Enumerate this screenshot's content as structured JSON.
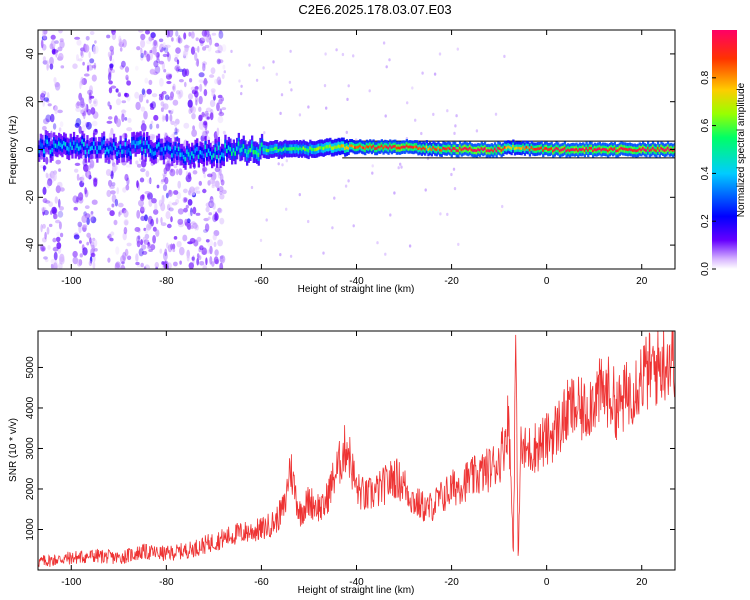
{
  "title": "C2E6.2025.178.03.07.E03",
  "chart_data": [
    {
      "type": "heatmap",
      "xlabel": "Height of straight line (km)",
      "ylabel": "Frequency (Hz)",
      "xlim": [
        -107,
        27
      ],
      "ylim": [
        -50,
        50
      ],
      "xticks": [
        -100,
        -80,
        -60,
        -40,
        -20,
        0,
        20
      ],
      "yticks": [
        -40,
        -20,
        0,
        20,
        40
      ],
      "colorbar": {
        "label": "Normalized spectral amplitude",
        "range": [
          0,
          1
        ],
        "ticks": [
          0.0,
          0.2,
          0.4,
          0.6,
          0.8
        ],
        "tick_labels": [
          "0.0",
          "0.2",
          "0.4",
          "0.6",
          "0.8"
        ],
        "colors": [
          "#ffffff",
          "#d9b8ff",
          "#6600ff",
          "#0000ff",
          "#00ccff",
          "#00ff66",
          "#99ff00",
          "#ffcc00",
          "#ff3300",
          "#ff0066"
        ]
      },
      "ridge": {
        "x": [
          -107,
          -100,
          -95,
          -90,
          -85,
          -80,
          -75,
          -70,
          -65,
          -60,
          -55,
          -50,
          -45,
          -40,
          -35,
          -30,
          -25,
          -20,
          -15,
          -10,
          -8,
          -5,
          0,
          5,
          10,
          15,
          20,
          27
        ],
        "y": [
          1,
          2,
          1,
          0,
          1,
          -1,
          -2,
          -1,
          0,
          0,
          0,
          0,
          1,
          1,
          1,
          1,
          0.5,
          0,
          0,
          0,
          1,
          0.5,
          0,
          0,
          0,
          0,
          0,
          0
        ],
        "amplitude": [
          0.35,
          0.4,
          0.35,
          0.35,
          0.4,
          0.35,
          0.4,
          0.4,
          0.5,
          0.55,
          0.55,
          0.6,
          0.65,
          0.85,
          0.9,
          0.95,
          0.8,
          0.95,
          0.97,
          0.97,
          0.75,
          0.8,
          0.95,
          0.97,
          0.97,
          0.97,
          0.95,
          0.97
        ]
      }
    },
    {
      "type": "line",
      "xlabel": "Height of straight line (km)",
      "ylabel": "SNR (10 * v/v)",
      "xlim": [
        -107,
        27
      ],
      "ylim": [
        0,
        5900
      ],
      "xticks": [
        -100,
        -80,
        -60,
        -40,
        -20,
        0,
        20
      ],
      "yticks": [
        1000,
        2000,
        3000,
        4000,
        5000
      ],
      "color": "#ee3333",
      "x": [
        -107,
        -100,
        -95,
        -90,
        -85,
        -80,
        -75,
        -70,
        -65,
        -60,
        -57,
        -55,
        -54,
        -52,
        -50,
        -47,
        -45,
        -43,
        -42,
        -40,
        -38,
        -35,
        -32,
        -30,
        -28,
        -25,
        -22,
        -20,
        -17,
        -15,
        -12,
        -10,
        -9,
        -8,
        -7,
        -6.5,
        -6,
        -5.5,
        -5,
        -3,
        0,
        3,
        5,
        8,
        10,
        13,
        15,
        18,
        20,
        23,
        25,
        27
      ],
      "y": [
        200,
        300,
        350,
        300,
        450,
        400,
        500,
        700,
        900,
        1000,
        1200,
        1600,
        2600,
        1400,
        1700,
        1500,
        2200,
        2800,
        3100,
        2000,
        1800,
        2000,
        2300,
        2100,
        1700,
        1500,
        1800,
        2000,
        2200,
        2300,
        2500,
        2700,
        3100,
        3800,
        500,
        5800,
        200,
        3000,
        2900,
        3000,
        3200,
        3600,
        4000,
        3900,
        4300,
        4400,
        4000,
        4500,
        4800,
        5000,
        5200,
        5300
      ]
    }
  ]
}
